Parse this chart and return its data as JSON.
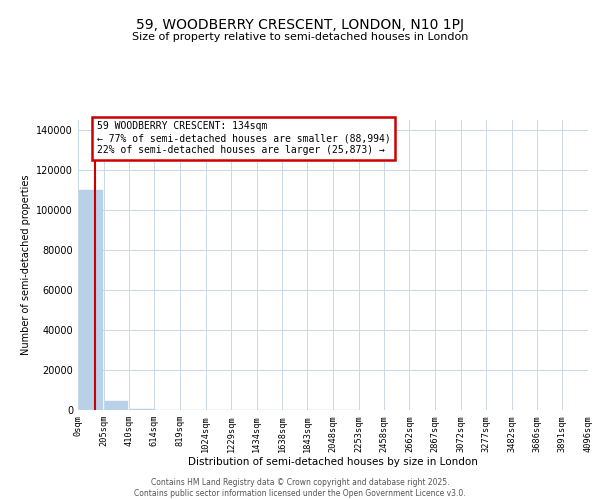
{
  "title": "59, WOODBERRY CRESCENT, LONDON, N10 1PJ",
  "subtitle": "Size of property relative to semi-detached houses in London",
  "xlabel": "Distribution of semi-detached houses by size in London",
  "ylabel": "Number of semi-detached properties",
  "annotation_title": "59 WOODBERRY CRESCENT: 134sqm",
  "annotation_line2": "← 77% of semi-detached houses are smaller (88,994)",
  "annotation_line3": "22% of semi-detached houses are larger (25,873) →",
  "footer": "Contains HM Land Registry data © Crown copyright and database right 2025.\nContains public sector information licensed under the Open Government Licence v3.0.",
  "property_size_sqm": 134,
  "bin_edges": [
    0,
    205,
    410,
    614,
    819,
    1024,
    1229,
    1434,
    1638,
    1843,
    2048,
    2253,
    2458,
    2662,
    2867,
    3072,
    3277,
    3482,
    3686,
    3891,
    4096
  ],
  "bin_labels": [
    "0sqm",
    "205sqm",
    "410sqm",
    "614sqm",
    "819sqm",
    "1024sqm",
    "1229sqm",
    "1434sqm",
    "1638sqm",
    "1843sqm",
    "2048sqm",
    "2253sqm",
    "2458sqm",
    "2662sqm",
    "2867sqm",
    "3072sqm",
    "3277sqm",
    "3482sqm",
    "3686sqm",
    "3891sqm",
    "4096sqm"
  ],
  "bar_values": [
    110000,
    4500,
    300,
    60,
    20,
    8,
    4,
    2,
    1,
    1,
    1,
    0,
    0,
    0,
    0,
    0,
    0,
    0,
    0,
    0
  ],
  "bar_color": "#b8d0e8",
  "vline_color": "#cc0000",
  "vline_x": 134,
  "annotation_box_color": "#cc0000",
  "background_color": "#ffffff",
  "grid_color": "#c8d8e8",
  "yticks": [
    0,
    20000,
    40000,
    60000,
    80000,
    100000,
    120000,
    140000
  ],
  "ylim": [
    0,
    145000
  ]
}
